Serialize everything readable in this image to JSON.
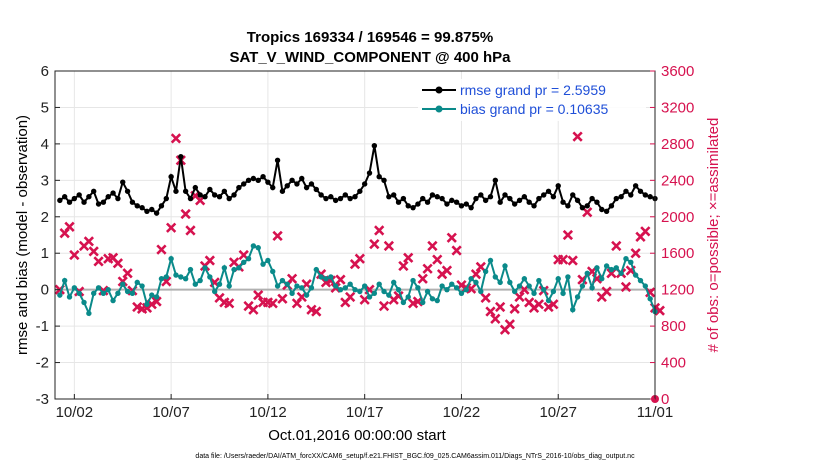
{
  "chart_data": {
    "type": "line",
    "title": "Tropics 169334 / 169546 = 99.875%",
    "subtitle": "SAT_V_WIND_COMPONENT @ 400 hPa",
    "xlabel": "Oct.01,2016 00:00:00 start",
    "ylabel": "rmse and bias (model - observation)",
    "ylabel_right": "# of obs: o=possible; ×=assimilated",
    "footnote": "data file: /Users/raeder/DAI/ATM_forcXX/CAM6_setup/f.e21.FHIST_BGC.f09_025.CAM6assim.011/Diags_NTrS_2016-10/obs_diag_output.nc",
    "x_unit": "days since 2016-10-01 00:00",
    "xlim": [
      0,
      31
    ],
    "ylim": [
      -3,
      6
    ],
    "ylim_right": [
      0,
      3600
    ],
    "x_ticks": [
      1,
      6,
      11,
      16,
      21,
      26,
      31
    ],
    "x_tick_labels": [
      "10/02",
      "10/07",
      "10/12",
      "10/17",
      "10/22",
      "10/27",
      "11/01"
    ],
    "y_ticks": [
      -3,
      -2,
      -1,
      0,
      1,
      2,
      3,
      4,
      5,
      6
    ],
    "y_tick_labels": [
      "-3",
      "-2",
      "-1",
      "0",
      "1",
      "2",
      "3",
      "4",
      "5",
      "6"
    ],
    "y_right_ticks": [
      0,
      400,
      800,
      1200,
      1600,
      2000,
      2400,
      2800,
      3200,
      3600
    ],
    "y_right_tick_labels": [
      "0",
      "400",
      "800",
      "1200",
      "1600",
      "2000",
      "2400",
      "2800",
      "3200",
      "3600"
    ],
    "grid": true,
    "legend_position": "top-right",
    "legend": [
      {
        "label": "rmse grand pr = 2.5959",
        "color": "#000000",
        "marker": "circle"
      },
      {
        "label": "bias grand pr = 0.10635",
        "color": "#0a8a8a",
        "marker": "circle"
      }
    ],
    "colors": {
      "rmse": "#000000",
      "bias": "#0a8a8a",
      "obs": "#d6124f",
      "zero_line": "#b0b0b0",
      "grid": "#e6e6e6"
    },
    "series": [
      {
        "name": "rmse grand pr = 2.5959",
        "axis": "left",
        "color": "#000000",
        "x_start": 0.25,
        "x_step": 0.25,
        "values": [
          2.45,
          2.55,
          2.4,
          2.5,
          2.6,
          2.4,
          2.55,
          2.7,
          2.35,
          2.4,
          2.55,
          2.65,
          2.5,
          2.95,
          2.7,
          2.4,
          2.3,
          2.25,
          2.15,
          2.2,
          2.1,
          2.3,
          2.5,
          3.1,
          2.7,
          3.65,
          2.7,
          2.5,
          2.8,
          2.6,
          2.55,
          2.75,
          2.6,
          2.55,
          2.7,
          2.5,
          2.6,
          2.8,
          2.9,
          3.0,
          3.05,
          3.0,
          3.1,
          2.95,
          2.8,
          3.55,
          2.7,
          2.85,
          3.0,
          2.9,
          3.05,
          2.8,
          2.9,
          2.75,
          2.6,
          2.5,
          2.55,
          2.45,
          2.5,
          2.6,
          2.5,
          2.55,
          2.7,
          2.9,
          3.2,
          3.95,
          3.1,
          3.0,
          2.55,
          2.6,
          2.4,
          2.5,
          2.3,
          2.25,
          2.35,
          2.5,
          2.4,
          2.6,
          2.55,
          2.5,
          2.35,
          2.45,
          2.4,
          2.3,
          2.35,
          2.25,
          2.5,
          2.6,
          2.45,
          2.55,
          3.0,
          2.4,
          2.6,
          2.5,
          2.35,
          2.45,
          2.55,
          2.4,
          2.3,
          2.5,
          2.6,
          2.7,
          2.55,
          2.85,
          2.4,
          2.3,
          2.6,
          2.45,
          2.25,
          2.3,
          2.5,
          2.4,
          2.2,
          2.15,
          2.3,
          2.5,
          2.55,
          2.7,
          2.6,
          2.85,
          2.7,
          2.6,
          2.55,
          2.5
        ]
      },
      {
        "name": "bias grand pr = 0.10635",
        "axis": "left",
        "color": "#0a8a8a",
        "x_start": 0.25,
        "x_step": 0.25,
        "values": [
          -0.15,
          0.25,
          -0.2,
          0.05,
          -0.1,
          -0.35,
          -0.65,
          -0.1,
          0.05,
          -0.1,
          0.0,
          -0.3,
          -0.1,
          0.15,
          -0.05,
          -0.1,
          0.2,
          0.1,
          -0.4,
          -0.15,
          -0.2,
          0.3,
          0.35,
          0.85,
          0.4,
          0.35,
          0.3,
          0.55,
          0.15,
          0.25,
          0.6,
          0.35,
          -0.05,
          0.15,
          0.6,
          0.1,
          0.55,
          0.6,
          0.75,
          0.85,
          1.2,
          1.15,
          0.7,
          0.8,
          0.5,
          0.1,
          0.25,
          0.15,
          -0.1,
          0.1,
          0.05,
          -0.15,
          0.05,
          0.55,
          0.35,
          0.3,
          0.35,
          0.1,
          0.0,
          0.05,
          0.15,
          0.0,
          -0.05,
          0.1,
          -0.2,
          -0.1,
          0.15,
          -0.05,
          -0.15,
          0.2,
          0.0,
          -0.35,
          -0.2,
          0.25,
          0.05,
          -0.35,
          -0.05,
          -0.25,
          -0.3,
          0.1,
          0.0,
          0.15,
          0.05,
          -0.1,
          0.0,
          0.3,
          0.2,
          -0.05,
          0.5,
          0.8,
          0.35,
          0.2,
          0.65,
          0.2,
          -0.05,
          0.1,
          0.3,
          0.1,
          -0.1,
          0.25,
          0.0,
          -0.3,
          -0.05,
          0.3,
          -0.1,
          0.35,
          -0.55,
          -0.2,
          0.1,
          0.45,
          0.05,
          0.6,
          0.3,
          0.65,
          0.55,
          0.6,
          0.45,
          0.85,
          0.75,
          0.4,
          0.25,
          0.1,
          -0.25,
          -0.6
        ]
      },
      {
        "name": "obs",
        "axis": "right",
        "color": "#d6124f",
        "marker": "cross",
        "x_start": 0.25,
        "x_step": 0.25,
        "values": [
          1200,
          1820,
          1890,
          1580,
          1180,
          1680,
          1730,
          1620,
          1510,
          1190,
          1540,
          1550,
          1490,
          1290,
          1380,
          1190,
          1010,
          990,
          1000,
          1040,
          1070,
          1640,
          1290,
          1880,
          2860,
          2620,
          2030,
          1850,
          2230,
          2180,
          1460,
          1520,
          1280,
          1110,
          1060,
          1050,
          1500,
          1450,
          1580,
          1020,
          980,
          1140,
          1060,
          1060,
          1050,
          1790,
          1100,
          1250,
          1320,
          1050,
          1120,
          1260,
          980,
          960,
          1370,
          1280,
          1300,
          1220,
          1310,
          1060,
          1120,
          1480,
          1540,
          1090,
          1200,
          1700,
          1850,
          1020,
          1680,
          1090,
          1130,
          1460,
          1550,
          1050,
          1070,
          1320,
          1430,
          1680,
          1530,
          1370,
          1410,
          1770,
          1630,
          1250,
          1220,
          1210,
          1370,
          1450,
          1110,
          960,
          880,
          1010,
          760,
          820,
          990,
          1120,
          1200,
          1060,
          1000,
          1040,
          1190,
          1010,
          1040,
          1530,
          1530,
          1800,
          1520,
          2880,
          1310,
          2050,
          1400,
          1320,
          1120,
          1180,
          1380,
          1680,
          1380,
          1230,
          1410,
          1600,
          1780,
          1840,
          1170,
          1000,
          970
        ]
      }
    ],
    "outlier_points": [
      {
        "series": "obs",
        "x": 31.0,
        "y_right": 0
      }
    ]
  }
}
